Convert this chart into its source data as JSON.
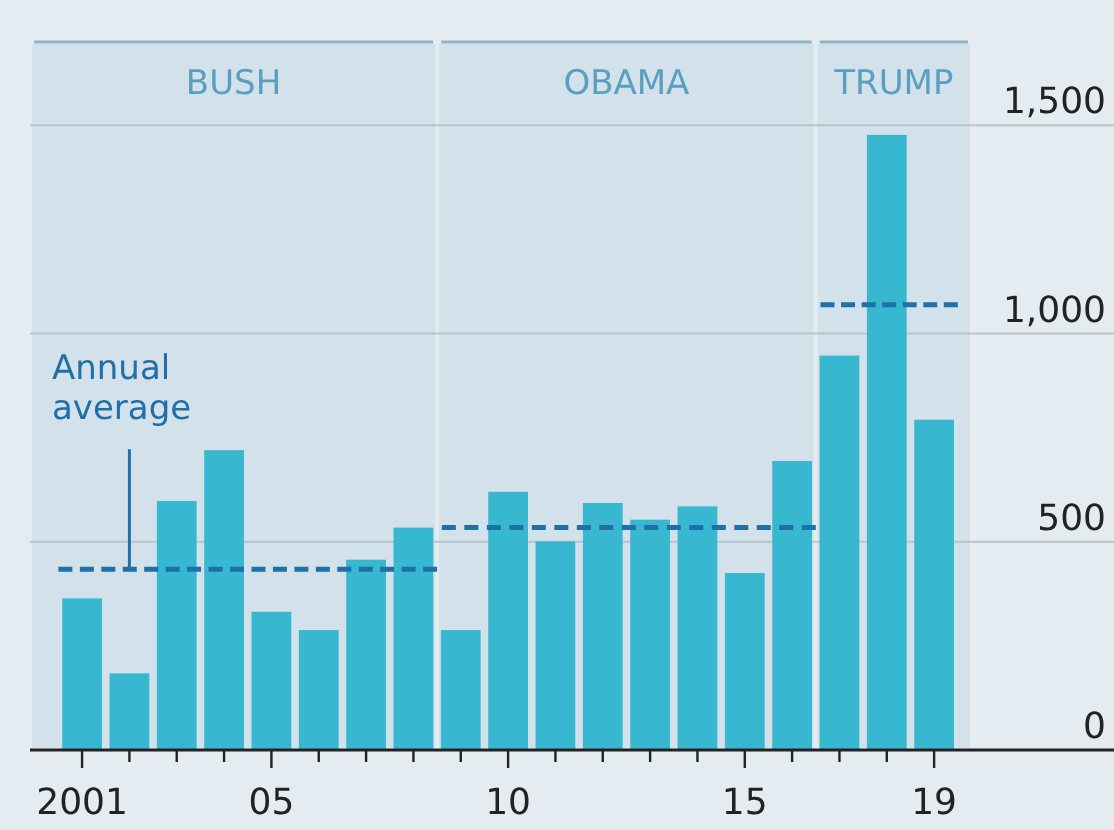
{
  "chart_data": {
    "type": "bar",
    "x": [
      2001,
      2002,
      2003,
      2004,
      2005,
      2006,
      2007,
      2008,
      2009,
      2010,
      2011,
      2012,
      2013,
      2014,
      2015,
      2016,
      2017,
      2018,
      2019
    ],
    "series": [
      {
        "color": "#37b8d0",
        "values": [
          364,
          184,
          598,
          720,
          332,
          288,
          457,
          534,
          288,
          620,
          501,
          593,
          553,
          585,
          425,
          694,
          947,
          1477,
          793
        ]
      },
      {
        "type": "line",
        "color": "#1f6fa8",
        "x": [
          2000.5,
          2008.5
        ],
        "values": [
          434,
          434
        ]
      },
      {
        "type": "line",
        "color": "#1f6fa8",
        "x": [
          2008.6,
          2016.5
        ],
        "values": [
          534,
          534
        ]
      },
      {
        "type": "line",
        "color": "#1f6fa8",
        "x": [
          2016.6,
          2019.5
        ],
        "values": [
          1069,
          1069
        ]
      }
    ],
    "line_style": "dashed",
    "xlim": [
      1999.9,
      2022.8
    ],
    "xticks": [
      {
        "value": 2001,
        "label": "2001"
      },
      {
        "value": 2002,
        "label": null
      },
      {
        "value": 2003,
        "label": null
      },
      {
        "value": 2004,
        "label": null
      },
      {
        "value": 2005,
        "label": "05"
      },
      {
        "value": 2006,
        "label": null
      },
      {
        "value": 2007,
        "label": null
      },
      {
        "value": 2008,
        "label": null
      },
      {
        "value": 2009,
        "label": null
      },
      {
        "value": 2010,
        "label": "10"
      },
      {
        "value": 2011,
        "label": null
      },
      {
        "value": 2012,
        "label": null
      },
      {
        "value": 2013,
        "label": null
      },
      {
        "value": 2014,
        "label": null
      },
      {
        "value": 2015,
        "label": "15"
      },
      {
        "value": 2016,
        "label": null
      },
      {
        "value": 2017,
        "label": null
      },
      {
        "value": 2018,
        "label": null
      },
      {
        "value": 2019,
        "label": "19"
      }
    ],
    "ylim": [
      0,
      1700
    ],
    "yticks": [
      0,
      500,
      {
        "value": 1000,
        "label": "1,000"
      },
      {
        "value": 1500,
        "label": "1,500"
      }
    ],
    "grid": "y",
    "bands": [
      {
        "axis": "x",
        "from": 1999.9,
        "to": 2008.5,
        "label": "BUSH",
        "color": "#d3e2ea"
      },
      {
        "axis": "x",
        "from": 2008.5,
        "to": 2016.5,
        "label": "OBAMA",
        "color": "#d3e2ea"
      },
      {
        "axis": "x",
        "from": 2016.5,
        "to": 2019.8,
        "label": "TRUMP",
        "color": "#d3e2ea"
      }
    ],
    "annotations": [
      {
        "text": "Annual average",
        "x": 2002,
        "y": 434
      }
    ]
  }
}
